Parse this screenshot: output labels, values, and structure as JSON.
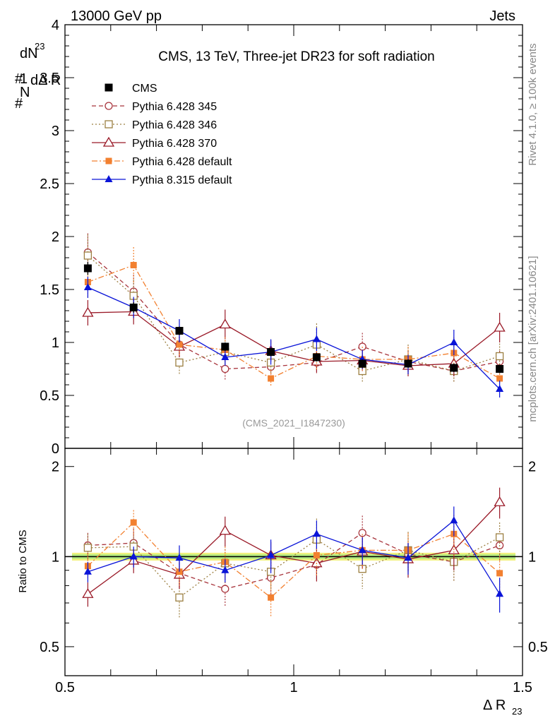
{
  "header": {
    "left": "13000 GeV pp",
    "right": "Jets"
  },
  "side": {
    "rivet": "Rivet 4.1.0, ≥ 100k events",
    "mcplots": "mcplots.cern.ch [arXiv:2401.10621]"
  },
  "chart_data": {
    "type": "line",
    "title": "CMS, 13 TeV, Three-jet DR23 for soft radiation",
    "analysis_id": "(CMS_2021_I1847230)",
    "xlabel": "Δ R",
    "xlabel_sub": "23",
    "ylabel_top": "1/N dN/dΔ R23",
    "ylabel_top_parts": {
      "hash": "#",
      "one": "1",
      "N": "N",
      "dN": "dN",
      "denom": "dΔ R",
      "sub": "23"
    },
    "ylabel_bottom": "Ratio to CMS",
    "xlim": [
      0.5,
      1.5
    ],
    "ylim_top": [
      0,
      4
    ],
    "ylim_bottom": [
      0.4,
      2.3
    ],
    "x_ticks": [
      {
        "v": 0.5,
        "label": "0.5"
      },
      {
        "v": 1,
        "label": "1"
      },
      {
        "v": 1.5,
        "label": "1.5"
      }
    ],
    "y_ticks_top": [
      {
        "v": 0,
        "label": "0"
      },
      {
        "v": 0.5,
        "label": "0.5"
      },
      {
        "v": 1,
        "label": "1"
      },
      {
        "v": 1.5,
        "label": "1.5"
      },
      {
        "v": 2,
        "label": "2"
      },
      {
        "v": 2.5,
        "label": "2.5"
      },
      {
        "v": 3,
        "label": "3"
      },
      {
        "v": 3.5,
        "label": "3.5"
      },
      {
        "v": 4,
        "label": "4"
      }
    ],
    "y_ticks_bottom": [
      {
        "v": 0.5,
        "label": "0.5"
      },
      {
        "v": 1,
        "label": "1"
      },
      {
        "v": 2,
        "label": "2"
      }
    ],
    "x": [
      0.55,
      0.65,
      0.75,
      0.85,
      0.95,
      1.05,
      1.15,
      1.25,
      1.35,
      1.45
    ],
    "data": {
      "name": "CMS",
      "color": "#000000",
      "values": [
        1.7,
        1.33,
        1.11,
        0.96,
        0.91,
        0.86,
        0.8,
        0.8,
        0.76,
        0.75
      ],
      "errors": [
        0.06,
        0.05,
        0.04,
        0.04,
        0.04,
        0.04,
        0.04,
        0.04,
        0.04,
        0.04
      ]
    },
    "series": [
      {
        "name": "Pythia 6.428 345",
        "color": "#a8343c",
        "dash": "6,4",
        "marker": "open-circle",
        "values": [
          1.85,
          1.48,
          0.98,
          0.75,
          0.77,
          0.81,
          0.96,
          0.82,
          0.73,
          0.82
        ],
        "errors": [
          0.18,
          0.16,
          0.1,
          0.1,
          0.1,
          0.1,
          0.13,
          0.1,
          0.1,
          0.1
        ],
        "ratio": [
          1.09,
          1.11,
          0.88,
          0.78,
          0.85,
          0.94,
          1.2,
          1.02,
          0.96,
          1.09
        ],
        "ratio_errors": [
          0.11,
          0.13,
          0.09,
          0.1,
          0.11,
          0.12,
          0.17,
          0.13,
          0.13,
          0.13
        ]
      },
      {
        "name": "Pythia 6.428 346",
        "color": "#9c7f41",
        "dash": "2,3",
        "marker": "open-square",
        "values": [
          1.82,
          1.44,
          0.81,
          0.91,
          0.81,
          0.98,
          0.73,
          0.84,
          0.73,
          0.87
        ],
        "errors": [
          0.2,
          0.15,
          0.12,
          0.11,
          0.1,
          0.2,
          0.1,
          0.14,
          0.1,
          0.12
        ],
        "ratio": [
          1.07,
          1.08,
          0.73,
          0.95,
          0.89,
          1.14,
          0.91,
          1.05,
          0.96,
          1.16
        ],
        "ratio_errors": [
          0.12,
          0.12,
          0.11,
          0.11,
          0.11,
          0.2,
          0.13,
          0.16,
          0.13,
          0.14
        ]
      },
      {
        "name": "Pythia 6.428 370",
        "color": "#9a1a28",
        "dash": "",
        "marker": "open-triangle",
        "values": [
          1.28,
          1.29,
          0.96,
          1.17,
          0.92,
          0.82,
          0.83,
          0.78,
          0.8,
          1.14
        ],
        "errors": [
          0.12,
          0.12,
          0.1,
          0.14,
          0.1,
          0.1,
          0.1,
          0.1,
          0.12,
          0.14
        ],
        "ratio": [
          0.75,
          0.97,
          0.87,
          1.22,
          1.01,
          0.95,
          1.04,
          0.98,
          1.05,
          1.52
        ],
        "ratio_errors": [
          0.07,
          0.09,
          0.09,
          0.14,
          0.11,
          0.12,
          0.13,
          0.13,
          0.15,
          0.18
        ]
      },
      {
        "name": "Pythia 6.428 default",
        "color": "#f28030",
        "dash": "8,3,2,3",
        "marker": "filled-square",
        "values": [
          1.57,
          1.73,
          0.98,
          0.93,
          0.66,
          0.87,
          0.84,
          0.84,
          0.9,
          0.66
        ],
        "errors": [
          0.14,
          0.17,
          0.1,
          0.12,
          0.08,
          0.13,
          0.12,
          0.12,
          0.15,
          0.1
        ],
        "ratio": [
          0.93,
          1.3,
          0.89,
          0.96,
          0.73,
          1.01,
          1.05,
          1.05,
          1.19,
          0.88
        ],
        "ratio_errors": [
          0.09,
          0.13,
          0.09,
          0.12,
          0.1,
          0.15,
          0.14,
          0.15,
          0.19,
          0.13
        ]
      },
      {
        "name": "Pythia 8.315 default",
        "color": "#0a14d8",
        "dash": "",
        "marker": "filled-triangle",
        "values": [
          1.52,
          1.33,
          1.11,
          0.86,
          0.91,
          1.03,
          0.84,
          0.79,
          1.0,
          0.56
        ],
        "errors": [
          0.1,
          0.1,
          0.11,
          0.08,
          0.12,
          0.11,
          0.09,
          0.09,
          0.12,
          0.08
        ],
        "ratio": [
          0.89,
          1.0,
          0.99,
          0.9,
          1.01,
          1.19,
          1.05,
          0.99,
          1.32,
          0.75
        ],
        "ratio_errors": [
          0.07,
          0.08,
          0.1,
          0.08,
          0.13,
          0.13,
          0.11,
          0.12,
          0.15,
          0.1
        ]
      }
    ]
  }
}
